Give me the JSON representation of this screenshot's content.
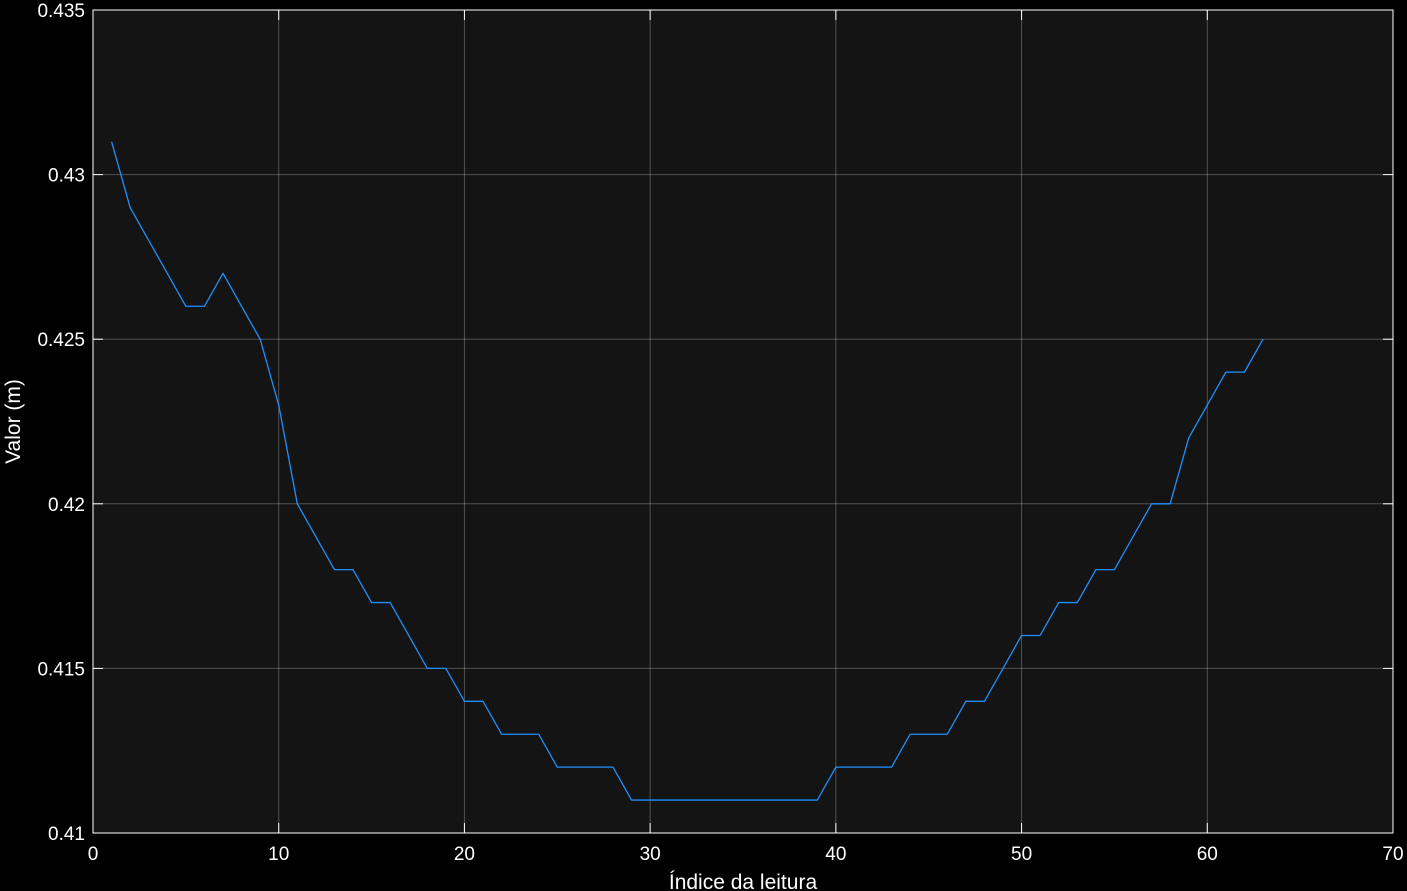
{
  "chart_data": {
    "type": "line",
    "title": "",
    "xlabel": "Índice da leitura",
    "ylabel": "Valor (m)",
    "xlim": [
      0,
      70
    ],
    "ylim": [
      0.41,
      0.435
    ],
    "xticks": [
      "0",
      "10",
      "20",
      "30",
      "40",
      "50",
      "60",
      "70"
    ],
    "yticks": [
      "0.41",
      "0.415",
      "0.42",
      "0.425",
      "0.43",
      "0.435"
    ],
    "grid": true,
    "background_color": "#141414",
    "figure_color": "#000000",
    "line_color": "#1f8fff",
    "series": [
      {
        "x": [
          1,
          2,
          3,
          4,
          5,
          6,
          7,
          8,
          9,
          10,
          11,
          12,
          13,
          14,
          15,
          16,
          17,
          18,
          19,
          20,
          21,
          22,
          23,
          24,
          25,
          26,
          27,
          28,
          29,
          30,
          31,
          32,
          33,
          34,
          35,
          36,
          37,
          38,
          39,
          40,
          41,
          42,
          43,
          44,
          45,
          46,
          47,
          48,
          49,
          50,
          51,
          52,
          53,
          54,
          55,
          56,
          57,
          58,
          59,
          60,
          61,
          62,
          63
        ],
        "values": [
          0.431,
          0.429,
          0.428,
          0.427,
          0.426,
          0.426,
          0.427,
          0.426,
          0.425,
          0.423,
          0.42,
          0.419,
          0.418,
          0.418,
          0.417,
          0.417,
          0.416,
          0.415,
          0.415,
          0.414,
          0.414,
          0.413,
          0.413,
          0.413,
          0.412,
          0.412,
          0.412,
          0.412,
          0.411,
          0.411,
          0.411,
          0.411,
          0.411,
          0.411,
          0.411,
          0.411,
          0.411,
          0.411,
          0.411,
          0.412,
          0.412,
          0.412,
          0.412,
          0.413,
          0.413,
          0.413,
          0.414,
          0.414,
          0.415,
          0.416,
          0.416,
          0.417,
          0.417,
          0.418,
          0.418,
          0.419,
          0.42,
          0.42,
          0.422,
          0.423,
          0.424,
          0.424,
          0.425
        ]
      }
    ]
  }
}
